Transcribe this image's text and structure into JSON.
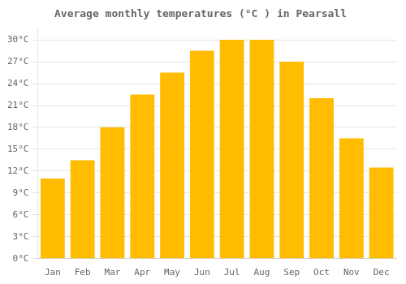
{
  "chart_data": {
    "type": "bar",
    "title": "Average monthly temperatures (°C ) in Pearsall",
    "categories": [
      "Jan",
      "Feb",
      "Mar",
      "Apr",
      "May",
      "Jun",
      "Jul",
      "Aug",
      "Sep",
      "Oct",
      "Nov",
      "Dec"
    ],
    "values": [
      11,
      13.5,
      18,
      22.5,
      25.5,
      28.5,
      30,
      30,
      27,
      22,
      16.5,
      12.5
    ],
    "color": "#FFBC00",
    "ylim": [
      0,
      31.5
    ],
    "yticks": [
      {
        "value": 0,
        "label": "0°C"
      },
      {
        "value": 3,
        "label": "3°C"
      },
      {
        "value": 6,
        "label": "6°C"
      },
      {
        "value": 9,
        "label": "9°C"
      },
      {
        "value": 12,
        "label": "12°C"
      },
      {
        "value": 15,
        "label": "15°C"
      },
      {
        "value": 18,
        "label": "18°C"
      },
      {
        "value": 21,
        "label": "21°C"
      },
      {
        "value": 24,
        "label": "24°C"
      },
      {
        "value": 27,
        "label": "27°C"
      },
      {
        "value": 30,
        "label": "30°C"
      }
    ],
    "grid": true
  }
}
